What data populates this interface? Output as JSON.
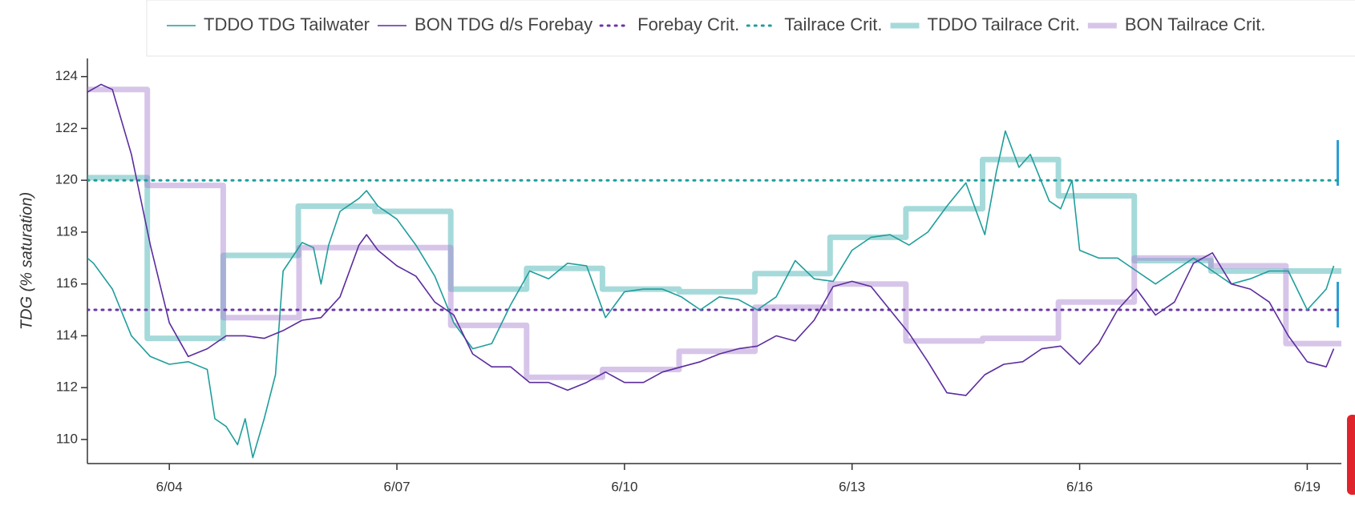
{
  "chart_data": {
    "type": "line",
    "y_label": "TDG (% saturation)",
    "xlim": [
      2.92,
      19.45
    ],
    "ylim": [
      109.07,
      124.7
    ],
    "xticks": [
      {
        "value": 4,
        "label": "6/04"
      },
      {
        "value": 7,
        "label": "6/07"
      },
      {
        "value": 10,
        "label": "6/10"
      },
      {
        "value": 13,
        "label": "6/13"
      },
      {
        "value": 16,
        "label": "6/16"
      },
      {
        "value": 19,
        "label": "6/19"
      }
    ],
    "yticks": [
      110,
      112,
      114,
      116,
      118,
      120,
      122,
      124
    ],
    "legend": "top",
    "series": [
      {
        "name": "TDDO TDG Tailwater",
        "color": "#1f9e9b",
        "style": "thin",
        "x": [
          2.92,
          3.0,
          3.25,
          3.5,
          3.75,
          4.0,
          4.25,
          4.5,
          4.6,
          4.75,
          4.9,
          5.0,
          5.1,
          5.25,
          5.4,
          5.5,
          5.75,
          5.9,
          6.0,
          6.1,
          6.25,
          6.5,
          6.6,
          6.75,
          7.0,
          7.25,
          7.5,
          7.75,
          8.0,
          8.25,
          8.5,
          8.75,
          9.0,
          9.25,
          9.5,
          9.75,
          10.0,
          10.25,
          10.5,
          10.75,
          11.0,
          11.25,
          11.5,
          11.75,
          12.0,
          12.25,
          12.5,
          12.75,
          13.0,
          13.25,
          13.5,
          13.75,
          14.0,
          14.25,
          14.5,
          14.75,
          14.9,
          15.02,
          15.2,
          15.35,
          15.6,
          15.75,
          15.9,
          16.0,
          16.25,
          16.5,
          16.75,
          17.0,
          17.25,
          17.5,
          17.75,
          18.0,
          18.25,
          18.5,
          18.75,
          19.0,
          19.25,
          19.35
        ],
        "values": [
          117.0,
          116.8,
          115.8,
          114.0,
          113.2,
          112.9,
          113.0,
          112.7,
          110.8,
          110.5,
          109.8,
          110.8,
          109.3,
          110.8,
          112.5,
          116.5,
          117.6,
          117.4,
          116.0,
          117.5,
          118.8,
          119.3,
          119.6,
          119.0,
          118.5,
          117.5,
          116.3,
          114.5,
          113.5,
          113.7,
          115.2,
          116.5,
          116.2,
          116.8,
          116.7,
          114.7,
          115.7,
          115.8,
          115.8,
          115.5,
          115.0,
          115.5,
          115.4,
          115.0,
          115.5,
          116.9,
          116.2,
          116.1,
          117.3,
          117.8,
          117.9,
          117.5,
          118.0,
          119.0,
          119.9,
          117.9,
          120.3,
          121.9,
          120.5,
          121.0,
          119.2,
          118.9,
          120.0,
          117.3,
          117.0,
          117.0,
          116.5,
          116.0,
          116.5,
          117.0,
          116.5,
          116.0,
          116.2,
          116.5,
          116.5,
          115.0,
          115.8,
          116.7
        ]
      },
      {
        "name": "BON TDG d/s Forebay",
        "color": "#5b2c9e",
        "style": "thin",
        "x": [
          2.92,
          3.1,
          3.25,
          3.5,
          3.75,
          4.0,
          4.25,
          4.5,
          4.75,
          5.0,
          5.25,
          5.5,
          5.75,
          6.0,
          6.25,
          6.5,
          6.6,
          6.75,
          7.0,
          7.25,
          7.5,
          7.75,
          8.0,
          8.25,
          8.5,
          8.75,
          9.0,
          9.25,
          9.5,
          9.75,
          10.0,
          10.25,
          10.5,
          10.75,
          11.0,
          11.25,
          11.5,
          11.75,
          12.0,
          12.25,
          12.5,
          12.75,
          13.0,
          13.25,
          13.5,
          13.75,
          14.0,
          14.25,
          14.5,
          14.75,
          15.0,
          15.25,
          15.5,
          15.75,
          16.0,
          16.25,
          16.5,
          16.75,
          17.0,
          17.25,
          17.5,
          17.75,
          18.0,
          18.25,
          18.5,
          18.75,
          19.0,
          19.25,
          19.35
        ],
        "values": [
          123.4,
          123.7,
          123.5,
          121.0,
          117.5,
          114.5,
          113.2,
          113.5,
          114.0,
          114.0,
          113.9,
          114.2,
          114.6,
          114.7,
          115.5,
          117.5,
          117.9,
          117.3,
          116.7,
          116.3,
          115.3,
          114.8,
          113.3,
          112.8,
          112.8,
          112.2,
          112.2,
          111.9,
          112.2,
          112.6,
          112.2,
          112.2,
          112.6,
          112.8,
          113.0,
          113.3,
          113.5,
          113.6,
          114.0,
          113.8,
          114.6,
          115.9,
          116.1,
          115.9,
          115.0,
          114.1,
          113.0,
          111.8,
          111.7,
          112.5,
          112.9,
          113.0,
          113.5,
          113.6,
          112.9,
          113.7,
          115.0,
          115.8,
          114.8,
          115.3,
          116.8,
          117.2,
          116.0,
          115.8,
          115.3,
          114.0,
          113.0,
          112.8,
          113.5
        ]
      },
      {
        "name": "Forebay Crit.",
        "color": "#6a35a8",
        "style": "dotted",
        "x": [
          2.92,
          19.45
        ],
        "values": [
          115,
          115
        ]
      },
      {
        "name": "Tailrace Crit.",
        "color": "#1f9e9b",
        "style": "dotted",
        "x": [
          2.92,
          19.45
        ],
        "values": [
          120,
          120
        ]
      },
      {
        "name": "TDDO Tailrace Crit.",
        "color": "#3aacac",
        "style": "step",
        "x": [
          2.92,
          3.71,
          4.71,
          5.7,
          6.71,
          7.71,
          8.71,
          9.71,
          10.72,
          11.72,
          12.71,
          13.71,
          14.72,
          15.72,
          16.72,
          17.73,
          18.72,
          19.45
        ],
        "values": [
          120.1,
          113.9,
          117.1,
          119.0,
          118.8,
          115.8,
          116.6,
          115.8,
          115.7,
          116.4,
          117.8,
          118.9,
          120.8,
          119.4,
          116.9,
          116.5,
          116.5,
          116.5
        ]
      },
      {
        "name": "BON Tailrace Crit.",
        "color": "#a77fcf",
        "style": "step",
        "x": [
          2.92,
          3.71,
          4.71,
          5.71,
          6.71,
          7.71,
          8.71,
          9.71,
          10.72,
          11.72,
          12.71,
          13.71,
          14.72,
          15.72,
          16.72,
          17.73,
          18.72,
          19.45
        ],
        "values": [
          123.5,
          119.8,
          114.7,
          117.4,
          117.4,
          114.4,
          112.4,
          112.7,
          113.4,
          115.1,
          116.0,
          113.8,
          113.9,
          115.3,
          117.0,
          116.7,
          113.7,
          113.7
        ]
      }
    ]
  }
}
